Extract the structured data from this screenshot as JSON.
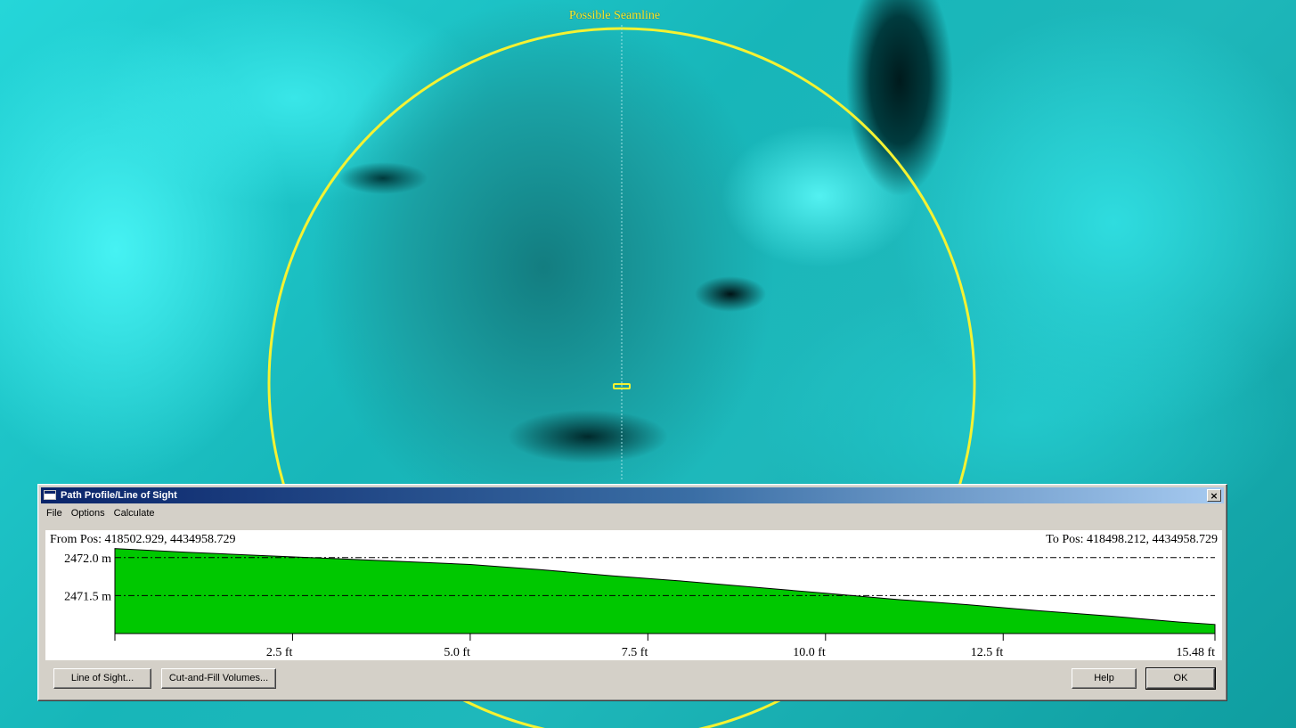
{
  "map": {
    "seamline_label": "Possible Seamline",
    "overlay_color": "#f5f232"
  },
  "dialog": {
    "title": "Path Profile/Line of Sight",
    "close_glyph": "×",
    "menu": [
      "File",
      "Options",
      "Calculate"
    ],
    "from_pos": "From Pos: 418502.929, 4434958.729",
    "to_pos": "To Pos: 418498.212, 4434958.729",
    "buttons": {
      "line_of_sight": "Line of Sight...",
      "cut_and_fill": "Cut-and-Fill Volumes...",
      "help": "Help",
      "ok": "OK"
    }
  },
  "chart_data": {
    "type": "area",
    "fill_color": "#00c800",
    "x_unit": "ft",
    "x_range": [
      0,
      15.48
    ],
    "y_range": [
      2471.0,
      2472.15
    ],
    "x_ticks": [
      {
        "value": 2.5,
        "label": "2.5 ft"
      },
      {
        "value": 5.0,
        "label": "5.0 ft"
      },
      {
        "value": 7.5,
        "label": "7.5 ft"
      },
      {
        "value": 10.0,
        "label": "10.0 ft"
      },
      {
        "value": 12.5,
        "label": "12.5 ft"
      },
      {
        "value": 15.48,
        "label": "15.48 ft"
      }
    ],
    "y_ticks": [
      {
        "value": 2472.0,
        "label": "2472.0 m"
      },
      {
        "value": 2471.5,
        "label": "2471.5 m"
      }
    ],
    "x": [
      0,
      1.0,
      2.0,
      3.0,
      4.0,
      5.0,
      6.0,
      7.0,
      8.0,
      9.0,
      10.0,
      11.0,
      12.0,
      13.0,
      14.0,
      15.0,
      15.48
    ],
    "y": [
      2472.12,
      2472.07,
      2472.03,
      2471.99,
      2471.95,
      2471.91,
      2471.84,
      2471.76,
      2471.69,
      2471.61,
      2471.53,
      2471.45,
      2471.38,
      2471.3,
      2471.23,
      2471.15,
      2471.12
    ]
  }
}
